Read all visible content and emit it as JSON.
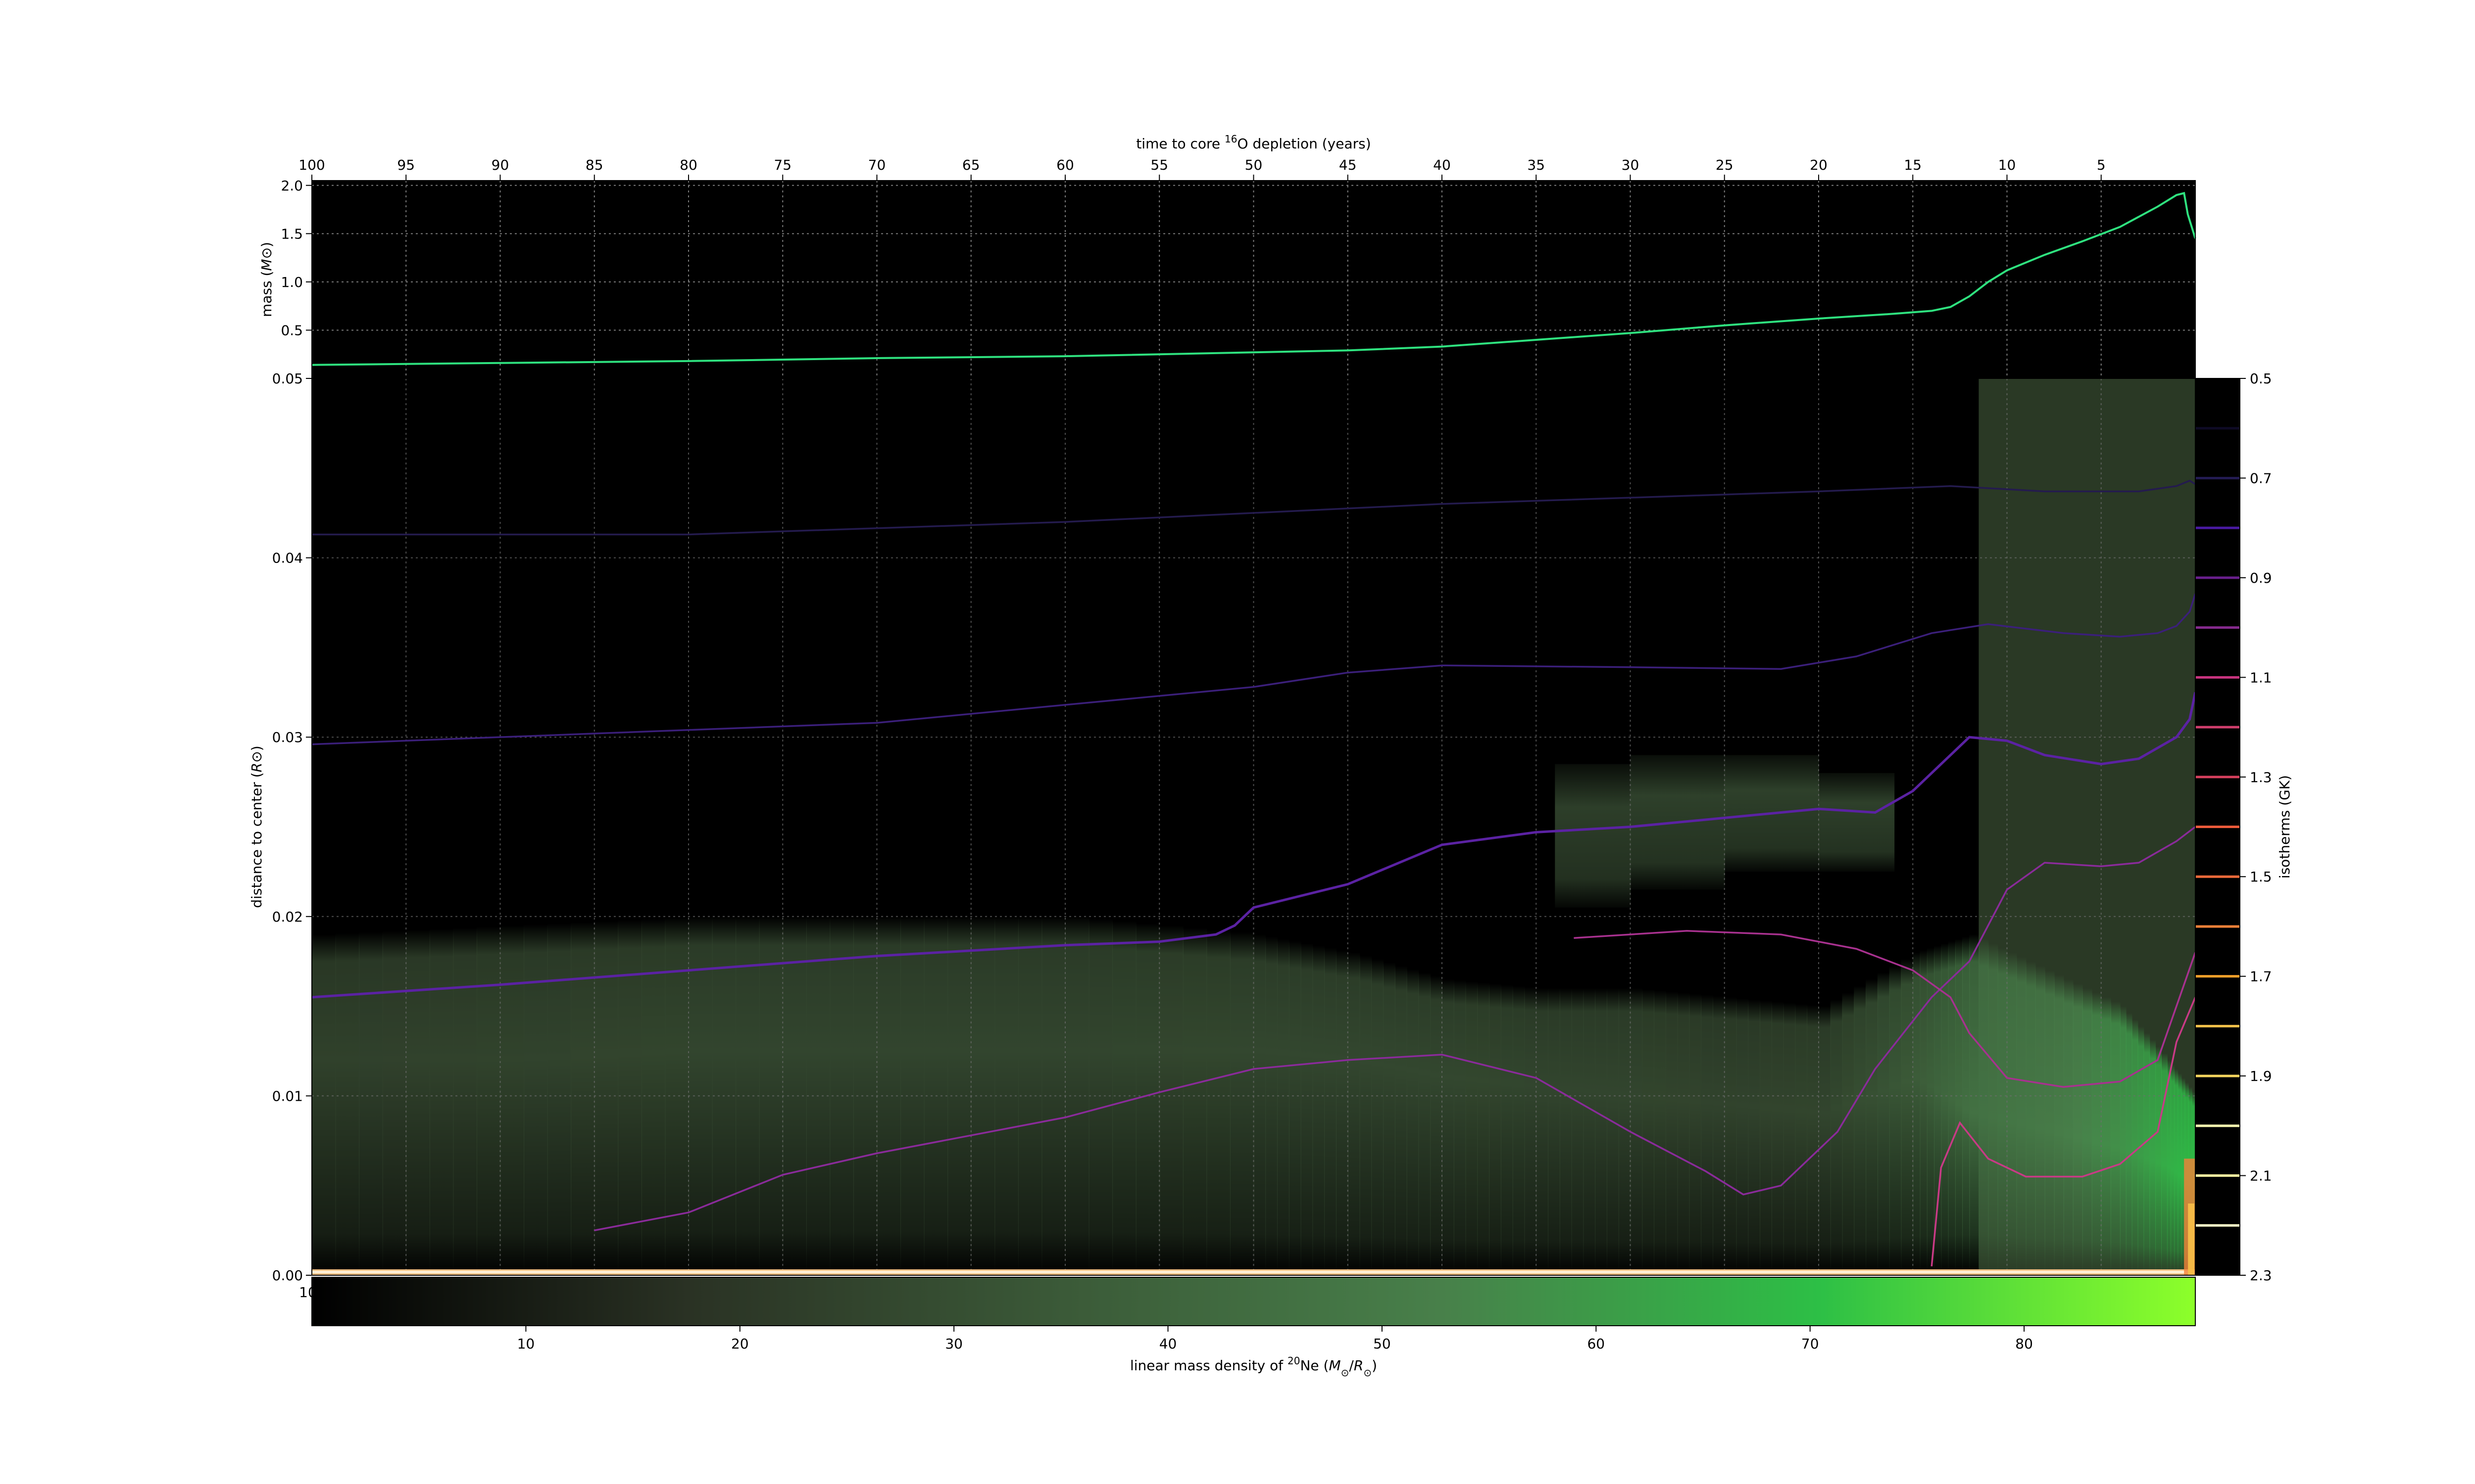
{
  "chart_data": {
    "type": "heatmap",
    "top_axis": {
      "label_prefix": "time to core ",
      "label_sup": "16",
      "label_suffix": "O depletion (years)",
      "ticks": [
        "100",
        "95",
        "90",
        "85",
        "80",
        "75",
        "70",
        "65",
        "60",
        "55",
        "50",
        "45",
        "40",
        "35",
        "30",
        "25",
        "20",
        "15",
        "10",
        "5"
      ],
      "tick_values": [
        100,
        95,
        90,
        85,
        80,
        75,
        70,
        65,
        60,
        55,
        50,
        45,
        40,
        35,
        30,
        25,
        20,
        15,
        10,
        5
      ],
      "range": [
        100,
        0
      ]
    },
    "mass_panel": {
      "ylabel_prefix": "mass (",
      "ylabel_unit": "M",
      "ylabel_sub": "⊙",
      "ylabel_suffix": ")",
      "yticks": [
        "0.5",
        "1.0",
        "1.5",
        "2.0"
      ],
      "ytick_values": [
        0.5,
        1.0,
        1.5,
        2.0
      ],
      "ylim": [
        0.0,
        2.05
      ],
      "line_color": "#2fe27f",
      "series": [
        {
          "t": 100,
          "m": 0.14
        },
        {
          "t": 90,
          "m": 0.16
        },
        {
          "t": 80,
          "m": 0.18
        },
        {
          "t": 70,
          "m": 0.21
        },
        {
          "t": 60,
          "m": 0.23
        },
        {
          "t": 50,
          "m": 0.27
        },
        {
          "t": 45,
          "m": 0.29
        },
        {
          "t": 40,
          "m": 0.33
        },
        {
          "t": 35,
          "m": 0.4
        },
        {
          "t": 30,
          "m": 0.47
        },
        {
          "t": 25,
          "m": 0.55
        },
        {
          "t": 20,
          "m": 0.62
        },
        {
          "t": 16,
          "m": 0.67
        },
        {
          "t": 14,
          "m": 0.7
        },
        {
          "t": 13,
          "m": 0.74
        },
        {
          "t": 12,
          "m": 0.85
        },
        {
          "t": 11,
          "m": 1.0
        },
        {
          "t": 10,
          "m": 1.12
        },
        {
          "t": 8,
          "m": 1.28
        },
        {
          "t": 6,
          "m": 1.42
        },
        {
          "t": 4,
          "m": 1.57
        },
        {
          "t": 2,
          "m": 1.78
        },
        {
          "t": 1,
          "m": 1.9
        },
        {
          "t": 0.6,
          "m": 1.92
        },
        {
          "t": 0.4,
          "m": 1.7
        },
        {
          "t": 0.0,
          "m": 1.45
        }
      ]
    },
    "main_panel": {
      "ylabel_prefix": "distance to center (",
      "ylabel_unit": "R",
      "ylabel_sub": "⊙",
      "ylabel_suffix": ")",
      "yticks": [
        "0.00",
        "0.01",
        "0.02",
        "0.03",
        "0.04",
        "0.05"
      ],
      "ytick_values": [
        0.0,
        0.01,
        0.02,
        0.03,
        0.04,
        0.05
      ],
      "ylim": [
        0.0,
        0.05
      ],
      "bottom_tick_fragment": "10",
      "isotherms": [
        {
          "T": 0.7,
          "color": "#241b4e",
          "points": [
            [
              100,
              0.0413
            ],
            [
              80,
              0.0413
            ],
            [
              60,
              0.042
            ],
            [
              40,
              0.043
            ],
            [
              20,
              0.0437
            ],
            [
              13,
              0.044
            ],
            [
              8,
              0.0437
            ],
            [
              3,
              0.0437
            ],
            [
              1,
              0.044
            ],
            [
              0.3,
              0.0443
            ],
            [
              0,
              0.0441
            ]
          ]
        },
        {
          "T": 0.8,
          "color": "#3b1f7a",
          "points": [
            [
              100,
              0.0296
            ],
            [
              85,
              0.0302
            ],
            [
              70,
              0.0308
            ],
            [
              60,
              0.0318
            ],
            [
              50,
              0.0328
            ],
            [
              45,
              0.0336
            ],
            [
              40,
              0.034
            ],
            [
              30,
              0.0339
            ],
            [
              22,
              0.0338
            ],
            [
              18,
              0.0345
            ],
            [
              14,
              0.0358
            ],
            [
              11,
              0.0363
            ],
            [
              7,
              0.0358
            ],
            [
              4,
              0.0356
            ],
            [
              2,
              0.0358
            ],
            [
              1,
              0.0362
            ],
            [
              0.3,
              0.037
            ],
            [
              0,
              0.038
            ]
          ]
        },
        {
          "T": 0.9,
          "color": "#5b22a3",
          "points": [
            [
              100,
              0.0155
            ],
            [
              90,
              0.0162
            ],
            [
              80,
              0.017
            ],
            [
              70,
              0.0178
            ],
            [
              60,
              0.0184
            ],
            [
              55,
              0.0186
            ],
            [
              52,
              0.019
            ],
            [
              51,
              0.0195
            ],
            [
              50,
              0.0205
            ],
            [
              45,
              0.0218
            ],
            [
              40,
              0.024
            ],
            [
              35,
              0.0247
            ],
            [
              30,
              0.025
            ],
            [
              25,
              0.0255
            ],
            [
              20,
              0.026
            ],
            [
              17,
              0.0258
            ],
            [
              15,
              0.027
            ],
            [
              12,
              0.03
            ],
            [
              10,
              0.0298
            ],
            [
              8,
              0.029
            ],
            [
              5,
              0.0285
            ],
            [
              3,
              0.0288
            ],
            [
              1,
              0.03
            ],
            [
              0.3,
              0.031
            ],
            [
              0,
              0.0325
            ]
          ]
        },
        {
          "T": 1.0,
          "color": "#8a2b9a",
          "points": [
            [
              85,
              0.0025
            ],
            [
              80,
              0.0035
            ],
            [
              75,
              0.0056
            ],
            [
              70,
              0.0068
            ],
            [
              65,
              0.0078
            ],
            [
              60,
              0.0088
            ],
            [
              55,
              0.0102
            ],
            [
              50,
              0.0115
            ],
            [
              45,
              0.012
            ],
            [
              40,
              0.0123
            ],
            [
              35,
              0.011
            ],
            [
              30,
              0.008
            ],
            [
              26,
              0.0058
            ],
            [
              24,
              0.0045
            ],
            [
              22,
              0.005
            ],
            [
              19,
              0.008
            ],
            [
              17,
              0.0115
            ],
            [
              14,
              0.0155
            ],
            [
              12,
              0.0175
            ],
            [
              10,
              0.0215
            ],
            [
              8,
              0.023
            ],
            [
              5,
              0.0228
            ],
            [
              3,
              0.023
            ],
            [
              1,
              0.0242
            ],
            [
              0,
              0.025
            ]
          ]
        },
        {
          "T": 1.2,
          "color": "#a8318f",
          "points": [
            [
              33,
              0.0188
            ],
            [
              27,
              0.0192
            ],
            [
              22,
              0.019
            ],
            [
              18,
              0.0182
            ],
            [
              15,
              0.017
            ],
            [
              13,
              0.0155
            ],
            [
              12,
              0.0135
            ],
            [
              10,
              0.011
            ],
            [
              7,
              0.0105
            ],
            [
              4,
              0.0108
            ],
            [
              2,
              0.012
            ],
            [
              1,
              0.015
            ],
            [
              0,
              0.018
            ]
          ]
        },
        {
          "T": 1.4,
          "color": "#c93a86",
          "points": [
            [
              14,
              0.0005
            ],
            [
              13.5,
              0.006
            ],
            [
              12.5,
              0.0085
            ],
            [
              11,
              0.0065
            ],
            [
              9,
              0.0055
            ],
            [
              6,
              0.0055
            ],
            [
              4,
              0.0062
            ],
            [
              2,
              0.008
            ],
            [
              1,
              0.013
            ],
            [
              0,
              0.0155
            ]
          ]
        }
      ],
      "ne_heat": [
        {
          "t": 100,
          "low": 0.0,
          "high": 0.019,
          "core": 0.012,
          "peak": 24
        },
        {
          "t": 90,
          "low": 0.0,
          "high": 0.0195,
          "core": 0.012,
          "peak": 25
        },
        {
          "t": 80,
          "low": 0.0,
          "high": 0.02,
          "core": 0.0125,
          "peak": 26
        },
        {
          "t": 70,
          "low": 0.0,
          "high": 0.02,
          "core": 0.0125,
          "peak": 26
        },
        {
          "t": 60,
          "low": 0.0,
          "high": 0.02,
          "core": 0.0125,
          "peak": 26
        },
        {
          "t": 50,
          "low": 0.0,
          "high": 0.019,
          "core": 0.0125,
          "peak": 27
        },
        {
          "t": 45,
          "low": 0.0,
          "high": 0.018,
          "core": 0.012,
          "peak": 27
        },
        {
          "t": 40,
          "low": 0.0,
          "high": 0.0165,
          "core": 0.011,
          "peak": 27
        },
        {
          "t": 35,
          "low": 0.0,
          "high": 0.016,
          "core": 0.0105,
          "peak": 26
        },
        {
          "t": 30,
          "low": 0.0,
          "high": 0.016,
          "core": 0.01,
          "peak": 26
        },
        {
          "t": 25,
          "low": 0.0,
          "high": 0.0155,
          "core": 0.0095,
          "peak": 25
        },
        {
          "t": 20,
          "low": 0.0,
          "high": 0.015,
          "core": 0.009,
          "peak": 26
        },
        {
          "t": 15,
          "low": 0.0,
          "high": 0.018,
          "core": 0.011,
          "peak": 36
        },
        {
          "t": 12,
          "low": 0.0,
          "high": 0.019,
          "core": 0.009,
          "peak": 46
        },
        {
          "t": 8,
          "low": 0.0,
          "high": 0.017,
          "core": 0.008,
          "peak": 50
        },
        {
          "t": 4,
          "low": 0.0,
          "high": 0.015,
          "core": 0.007,
          "peak": 58
        },
        {
          "t": 1.5,
          "low": 0.0,
          "high": 0.012,
          "core": 0.006,
          "peak": 66
        },
        {
          "t": 0,
          "low": 0.0,
          "high": 0.01,
          "core": 0.005,
          "peak": 70
        }
      ],
      "shell_heat": [
        {
          "t": 34,
          "low": 0.0205,
          "high": 0.028,
          "peak": 26
        },
        {
          "t": 30,
          "low": 0.0215,
          "high": 0.0285,
          "peak": 27
        },
        {
          "t": 25,
          "low": 0.0225,
          "high": 0.029,
          "peak": 27
        },
        {
          "t": 20,
          "low": 0.023,
          "high": 0.028,
          "peak": 27
        },
        {
          "t": 16,
          "low": 0.0225,
          "high": 0.0265,
          "peak": 26
        }
      ],
      "outer_band": {
        "t_start": 11.5,
        "t_end": 0,
        "low": 0.0,
        "high": 0.05,
        "peak": 25
      }
    },
    "isotherm_colorbar": {
      "label": "isotherms (GK)",
      "ticks": [
        "0.5",
        "0.7",
        "0.9",
        "1.1",
        "1.3",
        "1.5",
        "1.7",
        "1.9",
        "2.1",
        "2.3"
      ],
      "tick_values": [
        0.5,
        0.7,
        0.9,
        1.1,
        1.3,
        1.5,
        1.7,
        1.9,
        2.1,
        2.3
      ],
      "range": [
        0.5,
        2.3
      ],
      "levels": [
        {
          "T": 0.6,
          "color": "#0e0a25"
        },
        {
          "T": 0.7,
          "color": "#231b52"
        },
        {
          "T": 0.8,
          "color": "#4a1aa3"
        },
        {
          "T": 0.9,
          "color": "#6a1f8e"
        },
        {
          "T": 1.0,
          "color": "#862a8e"
        },
        {
          "T": 1.1,
          "color": "#c8347f"
        },
        {
          "T": 1.2,
          "color": "#d13e6d"
        },
        {
          "T": 1.3,
          "color": "#d6405d"
        },
        {
          "T": 1.4,
          "color": "#ee5a3a"
        },
        {
          "T": 1.5,
          "color": "#f06a3a"
        },
        {
          "T": 1.6,
          "color": "#f48138"
        },
        {
          "T": 1.7,
          "color": "#f8a02a"
        },
        {
          "T": 1.8,
          "color": "#f6c24a"
        },
        {
          "T": 1.9,
          "color": "#f5d55e"
        },
        {
          "T": 2.0,
          "color": "#fbfbb0"
        },
        {
          "T": 2.1,
          "color": "#fbf5a0"
        },
        {
          "T": 2.2,
          "color": "#fcfcc8"
        }
      ]
    },
    "density_colorbar": {
      "label_prefix": "linear mass density of ",
      "label_sup": "20",
      "label_mid": "Ne (",
      "label_unit1": "M",
      "label_sub1": "⊙",
      "label_slash": "/",
      "label_unit2": "R",
      "label_sub2": "⊙",
      "label_suffix": ")",
      "ticks": [
        "10",
        "20",
        "30",
        "40",
        "50",
        "60",
        "70",
        "80"
      ],
      "tick_values": [
        10,
        20,
        30,
        40,
        50,
        60,
        70,
        80
      ],
      "range": [
        0.0,
        88.0
      ],
      "colormap": [
        "#000000",
        "#2a3224",
        "#3b5a38",
        "#48804a",
        "#2dbf46",
        "#8dff2a"
      ]
    }
  }
}
